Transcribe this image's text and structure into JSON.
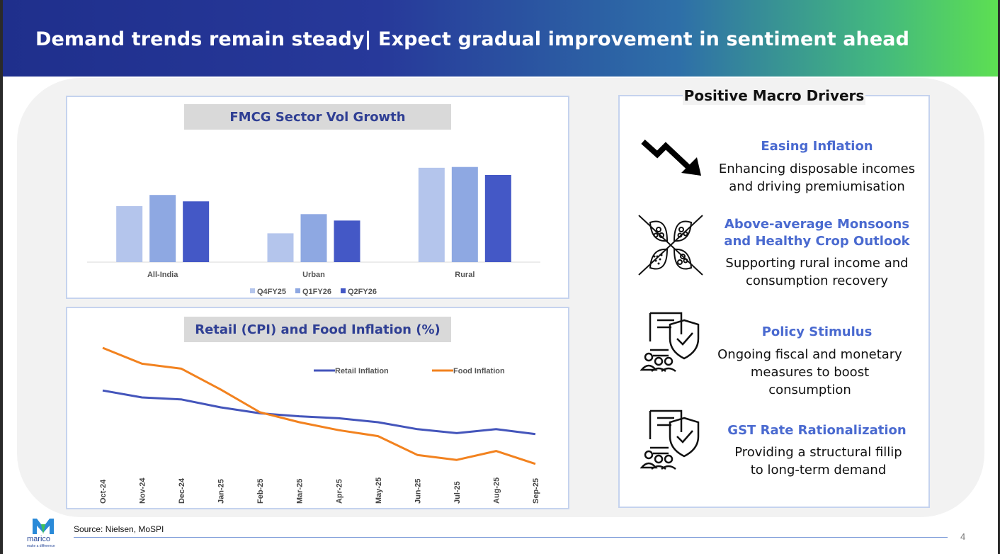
{
  "header": {
    "title": "Demand trends remain steady| Expect gradual improvement in sentiment ahead"
  },
  "chart_data": [
    {
      "type": "bar",
      "title": "FMCG Sector Vol Growth",
      "categories": [
        "All-India",
        "Urban",
        "Rural"
      ],
      "series": [
        {
          "name": "Q4FY25",
          "color": "#b4c5ec",
          "values": [
            3.5,
            1.8,
            5.9
          ]
        },
        {
          "name": "Q1FY26",
          "color": "#8ea8e2",
          "values": [
            4.2,
            3.0,
            5.95
          ]
        },
        {
          "name": "Q2FY26",
          "color": "#4458c6",
          "values": [
            3.8,
            2.6,
            5.45
          ]
        }
      ],
      "ylim": [
        0,
        7
      ],
      "legend": "bottom",
      "xlabel": "",
      "ylabel": ""
    },
    {
      "type": "line",
      "title": "Retail (CPI) and Food Inflation (%)",
      "categories": [
        "Oct-24",
        "Nov-24",
        "Dec-24",
        "Jan-25",
        "Feb-25",
        "Mar-25",
        "Apr-25",
        "May-25",
        "Jun-25",
        "Jul-25",
        "Aug-25",
        "Sep-25"
      ],
      "series": [
        {
          "name": "Retail Inflation",
          "color": "#4455bb",
          "values": [
            6.2,
            5.5,
            5.3,
            4.5,
            3.9,
            3.6,
            3.4,
            3.0,
            2.3,
            1.9,
            2.3,
            1.8
          ]
        },
        {
          "name": "Food Inflation",
          "color": "#f2821f",
          "values": [
            10.5,
            8.9,
            8.4,
            6.3,
            4.0,
            3.0,
            2.2,
            1.6,
            -0.3,
            -0.8,
            0.1,
            -1.2
          ]
        }
      ],
      "ylim": [
        -3,
        12
      ],
      "legend": "top-right",
      "xlabel": "",
      "ylabel": ""
    }
  ],
  "drivers": {
    "heading": "Positive Macro Drivers",
    "items": [
      {
        "title_lines": [
          "Easing Inflation"
        ],
        "desc_lines": [
          "Enhancing disposable incomes",
          "and driving premiumisation"
        ],
        "icon": "down-trend-arrow-icon"
      },
      {
        "title_lines": [
          "Above-average Monsoons",
          "and Healthy Crop Outlook"
        ],
        "desc_lines": [
          "Supporting rural income and",
          "consumption recovery"
        ],
        "icon": "grains-icon"
      },
      {
        "title_lines": [
          "Policy Stimulus"
        ],
        "desc_lines": [
          "Ongoing fiscal and monetary",
          "measures to boost",
          "consumption"
        ],
        "icon": "policy-document-icon"
      },
      {
        "title_lines": [
          "GST Rate Rationalization"
        ],
        "desc_lines": [
          "Providing a structural fillip",
          "to long-term demand"
        ],
        "icon": "policy-document-icon"
      }
    ]
  },
  "footer": {
    "source": "Source: Nielsen, MoSPI",
    "page_number": "4",
    "logo_text": "marico",
    "logo_tagline": "make a difference"
  },
  "colors": {
    "accent_blue": "#4a6ad0",
    "title_navy": "#2f3f94",
    "border": "#c5d3ee"
  }
}
